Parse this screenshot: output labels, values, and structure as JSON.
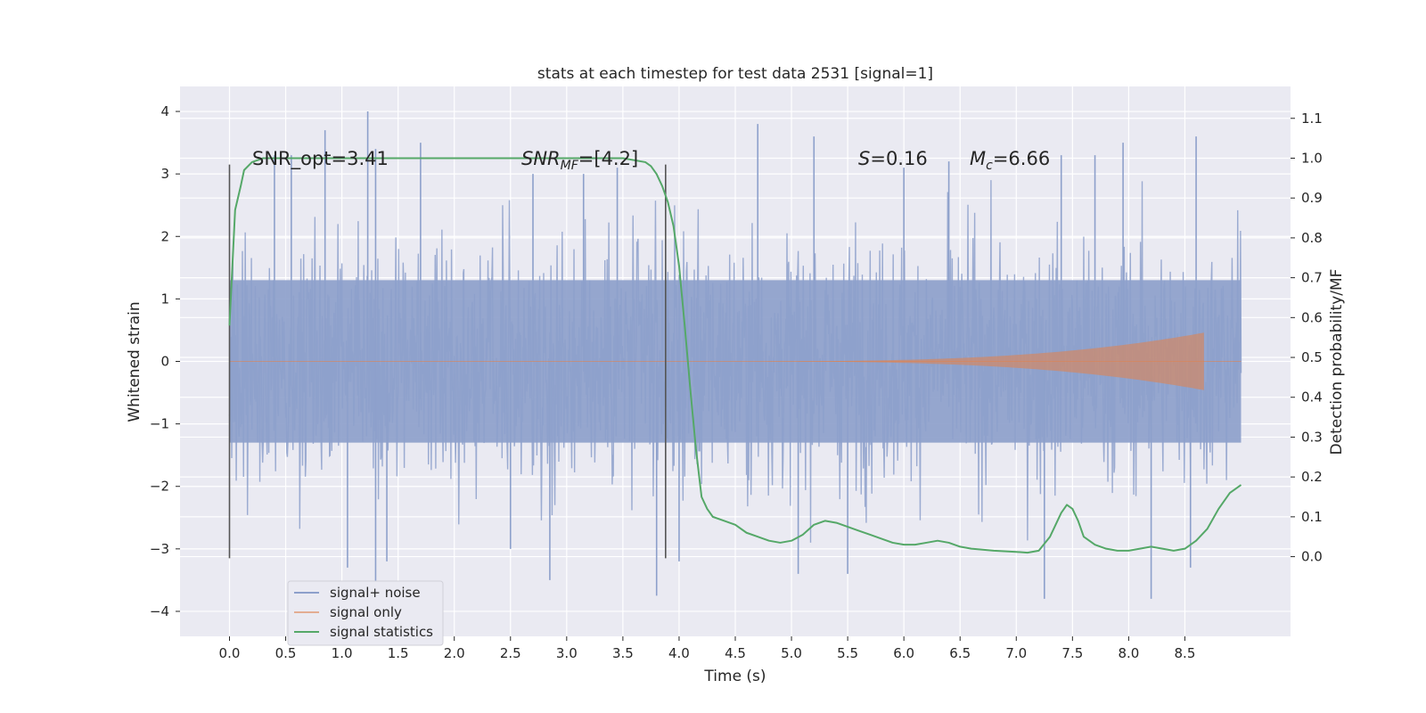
{
  "chart_data": {
    "type": "line",
    "title": "stats at each timestep for test data 2531 [signal=1]",
    "xlabel": "Time (s)",
    "ylabel": "Whitened strain",
    "ylabel_right": "Detection probability/MF",
    "xlim": [
      -0.44,
      9.44
    ],
    "ylim": [
      -4.4,
      4.4
    ],
    "ylim_right": [
      -0.2,
      1.18
    ],
    "x_ticks": [
      "0.0",
      "0.5",
      "1.0",
      "1.5",
      "2.0",
      "2.5",
      "3.0",
      "3.5",
      "4.0",
      "4.5",
      "5.0",
      "5.5",
      "6.0",
      "6.5",
      "7.0",
      "7.5",
      "8.0",
      "8.5"
    ],
    "y_ticks": [
      "4",
      "3",
      "2",
      "1",
      "0",
      "−1",
      "−2",
      "−3",
      "−4"
    ],
    "y_right_ticks": [
      "1.1",
      "1.0",
      "0.9",
      "0.8",
      "0.7",
      "0.6",
      "0.5",
      "0.4",
      "0.3",
      "0.2",
      "0.1",
      "0.0"
    ],
    "grid": true,
    "legend_position": "lower-left",
    "colors": {
      "background": "#eaeaf2",
      "grid": "#ffffff",
      "noise": "#8da0cb",
      "signal": "#dd8452",
      "stat": "#55a868",
      "vline": "#555555"
    },
    "annotations": {
      "snr_opt": "SNR_opt=3.41",
      "snr_mf_main": "SNR",
      "snr_mf_sub": "MF",
      "snr_mf_rest": "=[4.2]",
      "s_main": "S",
      "s_rest": "=0.16",
      "mc_main": "M",
      "mc_sub": "c",
      "mc_rest": "=6.66"
    },
    "vlines": [
      0.0,
      3.88
    ],
    "series": [
      {
        "name": "signal+ noise",
        "type": "noise",
        "t_range": [
          0.0,
          9.0
        ],
        "band_sigma": 1.3,
        "extremes": [
          [
            0.4,
            3.3
          ],
          [
            0.55,
            3.3
          ],
          [
            0.85,
            3.7
          ],
          [
            1.23,
            4.0
          ],
          [
            1.3,
            3.4
          ],
          [
            1.7,
            3.5
          ],
          [
            2.7,
            3.0
          ],
          [
            3.15,
            3.0
          ],
          [
            3.45,
            3.1
          ],
          [
            4.7,
            3.8
          ],
          [
            5.2,
            3.6
          ],
          [
            6.0,
            3.1
          ],
          [
            6.4,
            3.2
          ],
          [
            7.4,
            3.3
          ],
          [
            7.7,
            3.3
          ],
          [
            7.95,
            3.5
          ],
          [
            8.6,
            3.6
          ],
          [
            1.05,
            -3.3
          ],
          [
            1.3,
            -3.7
          ],
          [
            1.4,
            -3.2
          ],
          [
            2.5,
            -3.0
          ],
          [
            2.85,
            -3.5
          ],
          [
            3.8,
            -3.75
          ],
          [
            4.0,
            -3.2
          ],
          [
            5.06,
            -3.4
          ],
          [
            5.5,
            -3.4
          ],
          [
            7.25,
            -3.8
          ],
          [
            8.2,
            -3.8
          ],
          [
            8.55,
            -3.3
          ]
        ]
      },
      {
        "name": "signal only",
        "type": "chirp",
        "t_range": [
          4.5,
          8.67
        ],
        "amp_end": 0.45
      },
      {
        "name": "signal statistics",
        "type": "line",
        "axis": "right",
        "x": [
          0.0,
          0.05,
          0.1,
          0.13,
          0.2,
          0.3,
          0.5,
          1.0,
          2.0,
          3.0,
          3.5,
          3.7,
          3.75,
          3.8,
          3.85,
          3.9,
          3.95,
          4.0,
          4.05,
          4.1,
          4.15,
          4.2,
          4.25,
          4.3,
          4.4,
          4.5,
          4.6,
          4.7,
          4.8,
          4.9,
          5.0,
          5.1,
          5.2,
          5.3,
          5.4,
          5.5,
          5.6,
          5.7,
          5.8,
          5.9,
          6.0,
          6.1,
          6.2,
          6.3,
          6.4,
          6.5,
          6.6,
          6.8,
          7.0,
          7.1,
          7.2,
          7.3,
          7.4,
          7.45,
          7.5,
          7.55,
          7.6,
          7.7,
          7.8,
          7.9,
          8.0,
          8.1,
          8.2,
          8.3,
          8.4,
          8.5,
          8.6,
          8.7,
          8.8,
          8.9,
          9.0
        ],
        "y": [
          0.58,
          0.87,
          0.93,
          0.97,
          0.99,
          1.0,
          1.0,
          1.0,
          1.0,
          1.0,
          1.0,
          0.99,
          0.98,
          0.96,
          0.93,
          0.89,
          0.83,
          0.73,
          0.58,
          0.42,
          0.27,
          0.15,
          0.12,
          0.1,
          0.09,
          0.08,
          0.06,
          0.05,
          0.04,
          0.035,
          0.04,
          0.055,
          0.08,
          0.09,
          0.085,
          0.075,
          0.065,
          0.055,
          0.045,
          0.035,
          0.03,
          0.03,
          0.035,
          0.04,
          0.035,
          0.025,
          0.02,
          0.015,
          0.012,
          0.01,
          0.015,
          0.05,
          0.11,
          0.13,
          0.12,
          0.09,
          0.05,
          0.03,
          0.02,
          0.015,
          0.015,
          0.02,
          0.025,
          0.02,
          0.015,
          0.02,
          0.04,
          0.07,
          0.12,
          0.16,
          0.18
        ]
      }
    ]
  }
}
